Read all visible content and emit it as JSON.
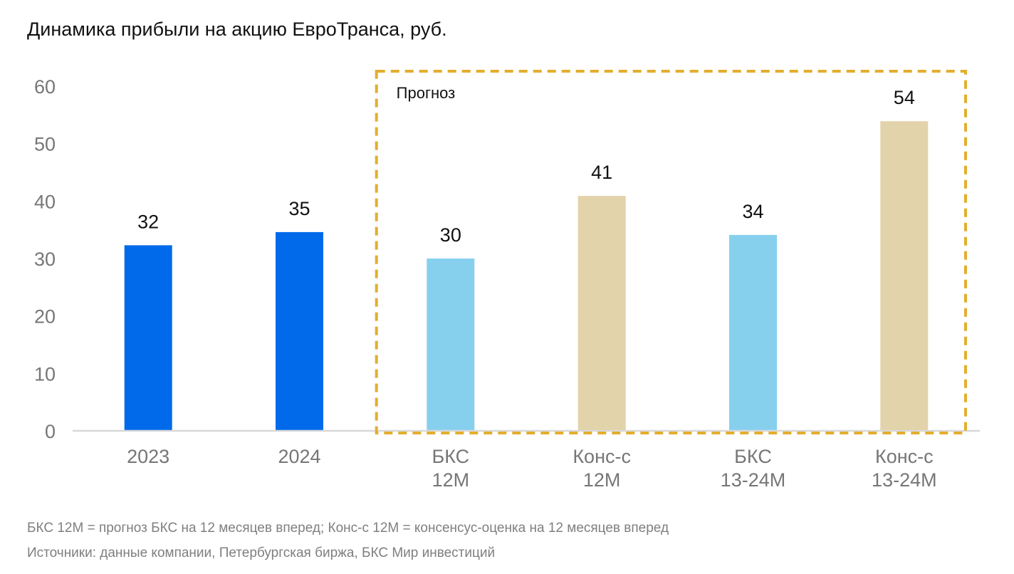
{
  "title": "Динамика прибыли на акцию ЕвроТранса, руб.",
  "forecast_label": "Прогноз",
  "notes": {
    "abbrev": "БКС 12М = прогноз БКС на 12 месяцев вперед; Конс-с 12М = консенсус-оценка на 12 месяцев вперед",
    "sources": "Источники: данные компании, Петербургская биржа, БКС Мир инвестиций"
  },
  "colors": {
    "actual": "#006AEB",
    "bcs_forecast": "#86D0EE",
    "consensus": "#E3D3AA",
    "forecast_box": "#E3AE2E",
    "axis_text": "#767676",
    "baseline": "#D9D9D9"
  },
  "chart_data": {
    "type": "bar",
    "title": "Динамика прибыли на акцию ЕвроТранса, руб.",
    "categories": [
      [
        "2023"
      ],
      [
        "2024"
      ],
      [
        "БКС",
        "12М"
      ],
      [
        "Конс-с",
        "12М"
      ],
      [
        "БКС",
        "13-24М"
      ],
      [
        "Конс-с",
        "13-24М"
      ]
    ],
    "values": [
      32.3,
      34.6,
      30,
      40.9,
      34.1,
      53.9
    ],
    "data_labels": [
      "32",
      "35",
      "30",
      "41",
      "34",
      "54"
    ],
    "bar_colors": [
      "#006AEB",
      "#006AEB",
      "#86D0EE",
      "#E3D3AA",
      "#86D0EE",
      "#E3D3AA"
    ],
    "ylim": [
      0,
      60
    ],
    "yticks": [
      0,
      10,
      20,
      30,
      40,
      50,
      60
    ],
    "grid": false,
    "forecast_region": {
      "label": "Прогноз",
      "categories": [
        2,
        3,
        4,
        5
      ]
    }
  }
}
